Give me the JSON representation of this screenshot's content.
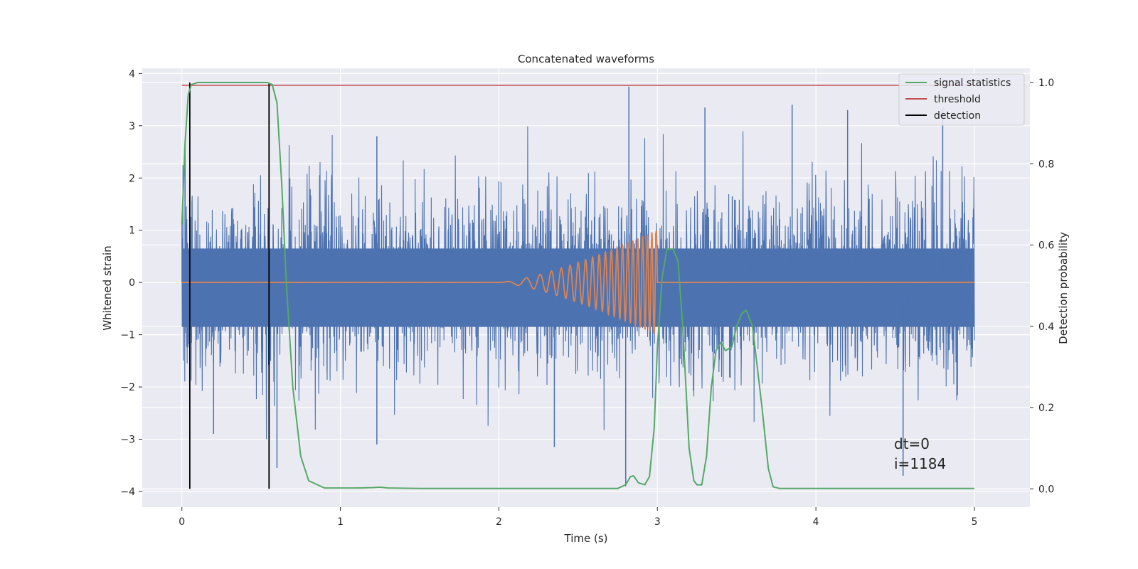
{
  "chart_data": {
    "type": "line",
    "title": "Concatenated waveforms",
    "xlabel": "Time (s)",
    "ylabel_left": "Whitened strain",
    "ylabel_right": "Detection probability",
    "xlim": [
      -0.25,
      5.35
    ],
    "ylim_left": [
      -4.3,
      4.1
    ],
    "ylim_right": [
      -0.045,
      1.035
    ],
    "x_ticks": [
      0,
      1,
      2,
      3,
      4,
      5
    ],
    "y_ticks_left": [
      4,
      3,
      2,
      1,
      0,
      -1,
      -2,
      -3,
      -4
    ],
    "y_ticks_right": [
      1.0,
      0.8,
      0.6,
      0.4,
      0.2,
      0.0
    ],
    "grid": true,
    "legend_position": "top-right",
    "colors": {
      "background": "#eaeaf2",
      "grid": "#ffffff",
      "strain": "#4c72b0",
      "waveform": "#dd8452",
      "signal_statistics": "#55a868",
      "threshold": "#c44e52",
      "detection": "#000000"
    },
    "series": [
      {
        "name": "",
        "kind": "whitened_strain",
        "x_range": [
          0,
          5
        ],
        "envelope_core": [
          -0.85,
          0.65
        ],
        "notable_peaks": [
          {
            "x": 0.02,
            "y": 2.6
          },
          {
            "x": 0.55,
            "y": 3.7
          },
          {
            "x": 0.6,
            "y": -3.55
          },
          {
            "x": 1.23,
            "y": 2.8
          },
          {
            "x": 2.82,
            "y": 3.75
          },
          {
            "x": 2.8,
            "y": -3.9
          },
          {
            "x": 3.3,
            "y": 3.35
          },
          {
            "x": 3.85,
            "y": 3.4
          },
          {
            "x": 4.2,
            "y": 3.3
          },
          {
            "x": 4.55,
            "y": -3.7
          },
          {
            "x": 4.8,
            "y": 3.35
          },
          {
            "x": 2.35,
            "y": -3.15
          },
          {
            "x": 1.23,
            "y": -3.1
          },
          {
            "x": 0.2,
            "y": -2.9
          }
        ]
      },
      {
        "name": "",
        "kind": "injected_waveform",
        "x_range": [
          0,
          5
        ],
        "chirp_start": 2.0,
        "chirp_end": 3.0,
        "amplitude_end": 1.0
      },
      {
        "name": "signal statistics",
        "axis": "right",
        "x": [
          0,
          0.02,
          0.04,
          0.06,
          0.1,
          0.15,
          0.3,
          0.45,
          0.54,
          0.57,
          0.6,
          0.63,
          0.66,
          0.7,
          0.75,
          0.8,
          0.9,
          1.0,
          1.1,
          1.2,
          1.25,
          1.3,
          1.5,
          2.0,
          2.5,
          2.75,
          2.8,
          2.83,
          2.85,
          2.88,
          2.92,
          2.95,
          2.98,
          3.0,
          3.03,
          3.06,
          3.1,
          3.13,
          3.16,
          3.2,
          3.23,
          3.25,
          3.28,
          3.31,
          3.34,
          3.37,
          3.4,
          3.43,
          3.47,
          3.5,
          3.53,
          3.56,
          3.6,
          3.63,
          3.66,
          3.7,
          3.73,
          3.77,
          3.8,
          4.0,
          4.5,
          5.0
        ],
        "y": [
          0.65,
          0.85,
          0.97,
          0.995,
          1.0,
          1.0,
          1.0,
          1.0,
          1.0,
          0.995,
          0.95,
          0.75,
          0.5,
          0.25,
          0.08,
          0.02,
          0.002,
          0.002,
          0.002,
          0.003,
          0.004,
          0.002,
          0.001,
          0.001,
          0.001,
          0.001,
          0.01,
          0.03,
          0.032,
          0.015,
          0.01,
          0.03,
          0.15,
          0.35,
          0.52,
          0.59,
          0.59,
          0.56,
          0.4,
          0.1,
          0.02,
          0.01,
          0.01,
          0.08,
          0.25,
          0.34,
          0.36,
          0.34,
          0.35,
          0.4,
          0.43,
          0.44,
          0.4,
          0.3,
          0.2,
          0.05,
          0.005,
          0.001,
          0.001,
          0.001,
          0.001,
          0.001
        ]
      },
      {
        "name": "threshold",
        "axis": "right",
        "x": [
          0,
          5
        ],
        "y": [
          0.993,
          0.993
        ]
      },
      {
        "name": "detection",
        "axis": "right",
        "vertical_lines_x": [
          0.05,
          0.55
        ],
        "y_range": [
          0,
          1.0
        ]
      }
    ],
    "annotations": [
      "dt=0",
      "i=1184"
    ]
  }
}
